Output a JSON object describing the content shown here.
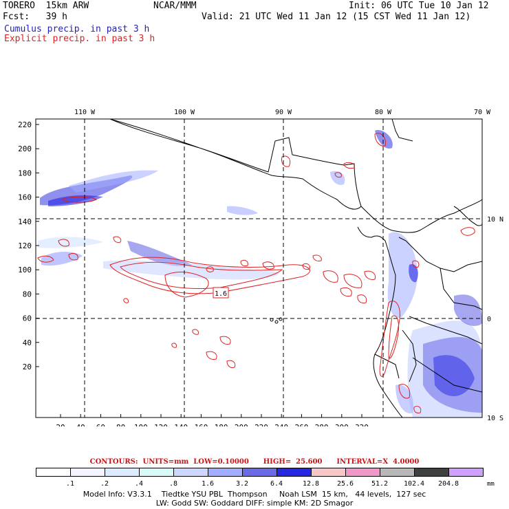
{
  "header": {
    "model": "TORERO  15km ARW",
    "org": "NCAR/MMM",
    "init": "Init: 06 UTC Tue 10 Jan 12",
    "fcst": "Fcst:   39 h",
    "valid": "Valid: 21 UTC Wed 11 Jan 12 (15 CST Wed 11 Jan 12)",
    "cumulus": "Cumulus precip. in past 3 h",
    "explicit": "Explicit precip. in past 3 h"
  },
  "map": {
    "lon_labels": [
      "110 W",
      "100 W",
      "90 W",
      "80 W",
      "70 W"
    ],
    "lat_labels": [
      "10 N",
      "0",
      "10 S"
    ],
    "y_ticks": [
      "220",
      "200",
      "180",
      "160",
      "140",
      "120",
      "100",
      "80",
      "60",
      "40",
      "20"
    ],
    "x_ticks": [
      "20",
      "40",
      "60",
      "80",
      "100",
      "120",
      "140",
      "160",
      "180",
      "200",
      "220",
      "240",
      "260",
      "280",
      "300",
      "320"
    ],
    "contour_label": "1.6"
  },
  "contours_line": {
    "prefix": "CONTOURS:  UNITS=mm  LOW=",
    "low": "0.10000",
    "high_label": "HIGH=",
    "high": "25.600",
    "interval_label": "INTERVAL=X",
    "interval": "4.0000"
  },
  "legend": {
    "colors": [
      "#ffffff",
      "#f4f4ff",
      "#dcebff",
      "#d9fbf8",
      "#ccd6ff",
      "#a3adff",
      "#6a6ae8",
      "#2626e3",
      "#f8c8c8",
      "#f099c8",
      "#b8b8b8",
      "#404040",
      "#d0a0ff"
    ],
    "labels": [
      ".1",
      ".2",
      ".4",
      ".8",
      "1.6",
      "3.2",
      "6.4",
      "12.8",
      "25.6",
      "51.2",
      "102.4",
      "204.8"
    ],
    "unit": "mm"
  },
  "footer": {
    "line1": "Model Info: V3.3.1    Tiedtke YSU PBL  Thompson     Noah LSM  15 km,   44 levels,  127 sec",
    "line2": "LW: Godd SW: Goddard DIFF: simple KM: 2D Smagor"
  }
}
